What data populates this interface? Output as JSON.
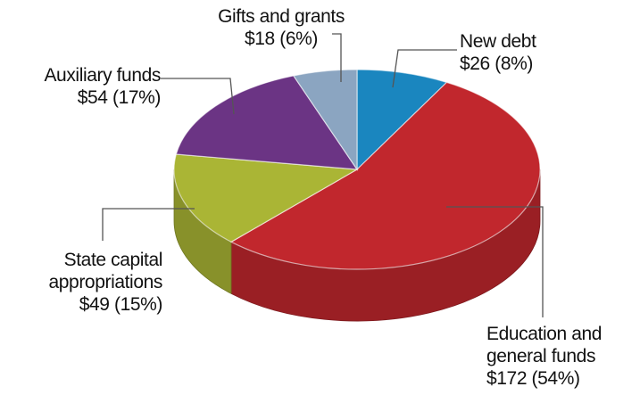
{
  "chart_data": {
    "type": "pie3d",
    "categories": [
      "New debt",
      "Education and general funds",
      "State capital appropriations",
      "Auxiliary funds",
      "Gifts and grants"
    ],
    "values": [
      26,
      172,
      49,
      54,
      18
    ],
    "value_labels": [
      "$26 (8%)",
      "$172 (54%)",
      "$49 (15%)",
      "$54 (17%)",
      "$18 (6%)"
    ],
    "colors": [
      "#1a86bf",
      "#c1272d",
      "#aab535",
      "#6b3484",
      "#8ba5c1"
    ]
  }
}
